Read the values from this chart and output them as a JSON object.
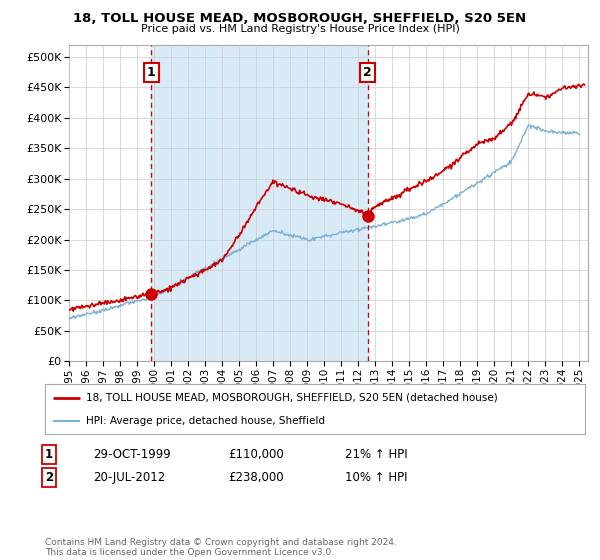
{
  "title": "18, TOLL HOUSE MEAD, MOSBOROUGH, SHEFFIELD, S20 5EN",
  "subtitle": "Price paid vs. HM Land Registry's House Price Index (HPI)",
  "ytick_values": [
    0,
    50000,
    100000,
    150000,
    200000,
    250000,
    300000,
    350000,
    400000,
    450000,
    500000
  ],
  "ylim": [
    0,
    520000
  ],
  "xlim_start": 1995.0,
  "xlim_end": 2025.5,
  "legend_line1": "18, TOLL HOUSE MEAD, MOSBOROUGH, SHEFFIELD, S20 5EN (detached house)",
  "legend_line2": "HPI: Average price, detached house, Sheffield",
  "purchase1_label": "1",
  "purchase1_date": "29-OCT-1999",
  "purchase1_price": "£110,000",
  "purchase1_hpi": "21% ↑ HPI",
  "purchase1_x": 1999.83,
  "purchase1_y": 110000,
  "purchase2_label": "2",
  "purchase2_date": "20-JUL-2012",
  "purchase2_price": "£238,000",
  "purchase2_hpi": "10% ↑ HPI",
  "purchase2_x": 2012.55,
  "purchase2_y": 238000,
  "line_color_red": "#cc0000",
  "line_color_blue": "#7ab0d4",
  "shade_color": "#d8eaf5",
  "dashed_color": "#cc0000",
  "footer": "Contains HM Land Registry data © Crown copyright and database right 2024.\nThis data is licensed under the Open Government Licence v3.0.",
  "background_color": "#ffffff",
  "grid_color": "#cccccc",
  "xtick_years": [
    1995,
    1996,
    1997,
    1998,
    1999,
    2000,
    2001,
    2002,
    2003,
    2004,
    2005,
    2006,
    2007,
    2008,
    2009,
    2010,
    2011,
    2012,
    2013,
    2014,
    2015,
    2016,
    2017,
    2018,
    2019,
    2020,
    2021,
    2022,
    2023,
    2024,
    2025
  ]
}
